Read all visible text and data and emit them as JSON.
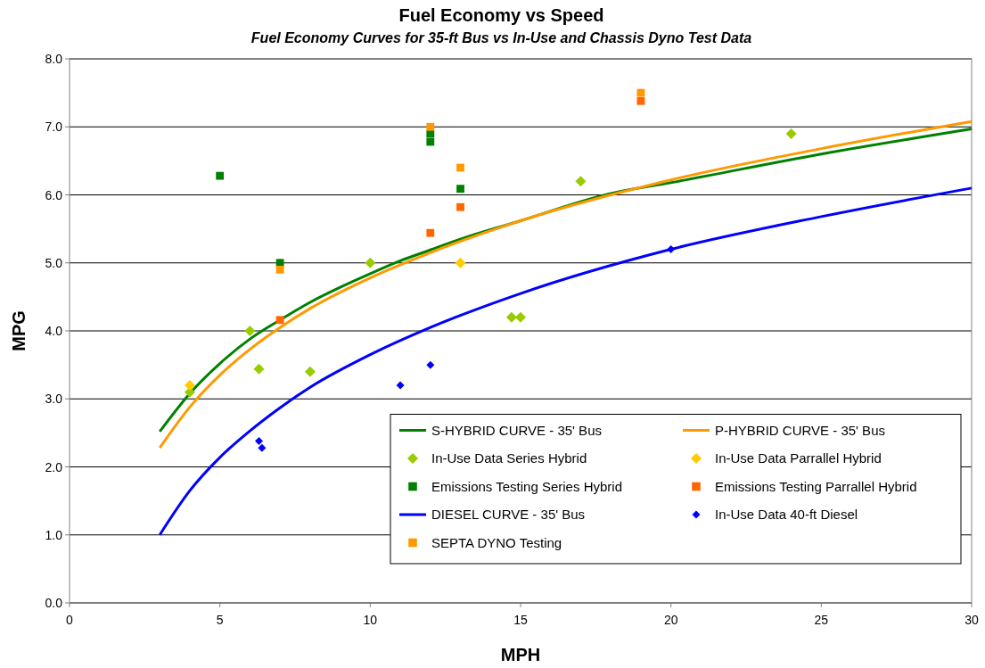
{
  "chart_data": {
    "type": "scatter",
    "title": "Fuel Economy vs Speed",
    "subtitle": "Fuel Economy Curves for 35-ft Bus vs In-Use and Chassis Dyno Test Data",
    "xlabel": "MPH",
    "ylabel": "MPG",
    "xlim": [
      0,
      30
    ],
    "xticks": [
      0,
      5,
      10,
      15,
      20,
      25,
      30
    ],
    "ylim": [
      0,
      8
    ],
    "yticks": [
      {
        "value": 0,
        "label": "0.0"
      },
      {
        "value": 1,
        "label": "1.0"
      },
      {
        "value": 2,
        "label": "2.0"
      },
      {
        "value": 3,
        "label": "3.0"
      },
      {
        "value": 4,
        "label": "4.0"
      },
      {
        "value": 5,
        "label": "5.0"
      },
      {
        "value": 6,
        "label": "6.0"
      },
      {
        "value": 7,
        "label": "7.0"
      },
      {
        "value": 8,
        "label": "8.0"
      }
    ],
    "grid": "y",
    "legend": "bottom right",
    "series": [
      {
        "name": "S-HYBRID CURVE - 35' Bus",
        "type": "line",
        "marker": "none",
        "color": "#008000",
        "x": [
          3,
          4,
          5,
          6,
          7,
          8,
          9,
          10,
          11,
          12,
          13,
          15,
          18,
          20,
          25,
          30
        ],
        "values": [
          2.52,
          3.08,
          3.52,
          3.88,
          4.16,
          4.42,
          4.64,
          4.84,
          5.03,
          5.19,
          5.35,
          5.62,
          6.02,
          6.18,
          6.6,
          6.97
        ]
      },
      {
        "name": "P-HYBRID CURVE - 35' Bus",
        "type": "line",
        "marker": "none",
        "color": "#ff9900",
        "x": [
          3,
          4,
          5,
          6,
          7,
          8,
          10,
          12,
          15,
          20,
          25,
          30
        ],
        "values": [
          2.28,
          2.88,
          3.35,
          3.73,
          4.05,
          4.33,
          4.78,
          5.15,
          5.62,
          6.22,
          6.68,
          7.08
        ]
      },
      {
        "name": "In-Use Data Series Hybrid",
        "type": "scatter",
        "marker": "diamond",
        "color": "#99cc00",
        "x": [
          4,
          6,
          6.3,
          8,
          10,
          14.7,
          15,
          17,
          24
        ],
        "values": [
          3.1,
          4.0,
          3.44,
          3.4,
          5.0,
          4.2,
          4.2,
          6.2,
          6.9
        ]
      },
      {
        "name": "In-Use Data Parrallel Hybrid",
        "type": "scatter",
        "marker": "diamond",
        "color": "#ffcc00",
        "x": [
          4,
          13
        ],
        "values": [
          3.2,
          5.0
        ]
      },
      {
        "name": "Emissions Testing Series Hybrid",
        "type": "scatter",
        "marker": "square",
        "color": "#008000",
        "x": [
          5,
          7,
          12,
          12,
          13
        ],
        "values": [
          6.28,
          5.0,
          6.9,
          6.78,
          6.09
        ]
      },
      {
        "name": "Emissions Testing Parrallel Hybrid",
        "type": "scatter",
        "marker": "square",
        "color": "#ff6600",
        "x": [
          7,
          12,
          13,
          19
        ],
        "values": [
          4.16,
          5.44,
          5.82,
          7.38
        ]
      },
      {
        "name": "DIESEL CURVE - 35' Bus",
        "type": "line",
        "marker": "none",
        "color": "#0000ff",
        "x": [
          3,
          4,
          5,
          6,
          7,
          8,
          10,
          12,
          15,
          20,
          25,
          30
        ],
        "values": [
          1.0,
          1.65,
          2.14,
          2.53,
          2.87,
          3.17,
          3.65,
          4.05,
          4.55,
          5.2,
          5.68,
          6.1
        ]
      },
      {
        "name": "In-Use Data 40-ft Diesel",
        "type": "scatter",
        "marker": "diamond",
        "color": "#0000ff",
        "x": [
          6.3,
          6.4,
          11,
          12,
          20
        ],
        "values": [
          2.38,
          2.28,
          3.2,
          3.5,
          5.2
        ]
      },
      {
        "name": "SEPTA DYNO Testing",
        "type": "scatter",
        "marker": "square",
        "color": "#ff9900",
        "x": [
          7,
          12,
          13,
          19
        ],
        "values": [
          4.9,
          7.0,
          6.4,
          7.5
        ]
      }
    ]
  }
}
